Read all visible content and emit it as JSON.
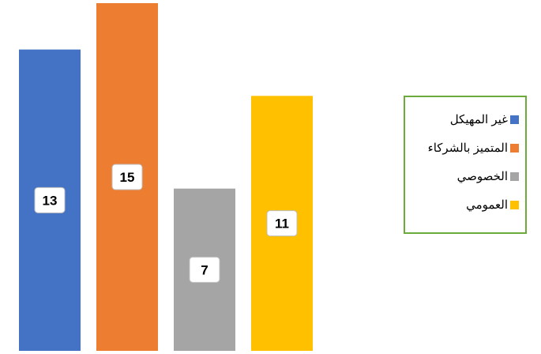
{
  "chart_data": {
    "type": "bar",
    "categories": [
      "غير المهيكل",
      "المتميز بالشركاء",
      "الخصوصي",
      "العمومي"
    ],
    "values": [
      13,
      15,
      7,
      11
    ],
    "colors": [
      "#4472c4",
      "#ed7d31",
      "#a5a5a5",
      "#ffc000"
    ],
    "title": "",
    "xlabel": "",
    "ylabel": "",
    "ylim": [
      0,
      15
    ],
    "grid": false,
    "data_labels": true,
    "legend_position": "right"
  },
  "legend": {
    "border_color": "#6aab3c",
    "items": [
      {
        "label": "غير المهيكل",
        "color": "#4472c4"
      },
      {
        "label": "المتميز بالشركاء",
        "color": "#ed7d31"
      },
      {
        "label": "الخصوصي",
        "color": "#a5a5a5"
      },
      {
        "label": "العمومي",
        "color": "#ffc000"
      }
    ]
  }
}
